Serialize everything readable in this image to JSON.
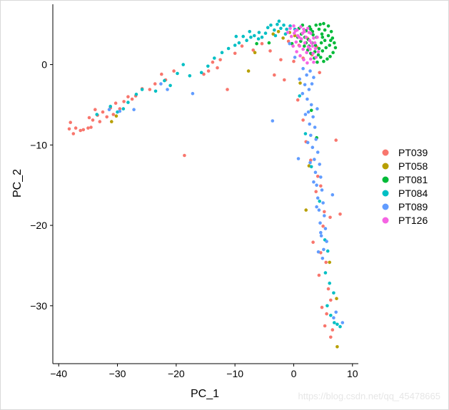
{
  "chart_data": {
    "type": "scatter",
    "title": "",
    "xlabel": "PC_1",
    "ylabel": "PC_2",
    "xlim": [
      -41,
      11
    ],
    "ylim": [
      -37.2,
      7.5
    ],
    "x_ticks": [
      -40,
      -30,
      -20,
      -10,
      0,
      10
    ],
    "x_tick_labels": [
      "−40",
      "−30",
      "−20",
      "−10",
      "0",
      "10"
    ],
    "y_ticks": [
      0,
      -10,
      -20,
      -30
    ],
    "y_tick_labels": [
      "0",
      "−10",
      "−20",
      "−30"
    ],
    "grid": false,
    "legend_position": "right",
    "series": [
      {
        "name": "PT039",
        "color": "#F8766D",
        "points": [
          [
            -38.0,
            -7.2
          ],
          [
            -38.2,
            -8.0
          ],
          [
            -37.5,
            -8.6
          ],
          [
            -37.1,
            -7.9
          ],
          [
            -36.3,
            -8.2
          ],
          [
            -35.8,
            -8.1
          ],
          [
            -35.0,
            -7.9
          ],
          [
            -34.8,
            -6.6
          ],
          [
            -34.5,
            -7.8
          ],
          [
            -34.2,
            -6.9
          ],
          [
            -33.8,
            -5.6
          ],
          [
            -33.4,
            -6.3
          ],
          [
            -33.0,
            -7.1
          ],
          [
            -32.5,
            -5.9
          ],
          [
            -31.8,
            -6.5
          ],
          [
            -31.2,
            -5.4
          ],
          [
            -30.7,
            -6.2
          ],
          [
            -30.3,
            -4.8
          ],
          [
            -29.6,
            -5.5
          ],
          [
            -28.9,
            -4.6
          ],
          [
            -28.2,
            -4.0
          ],
          [
            -27.5,
            -4.3
          ],
          [
            -26.9,
            -3.9
          ],
          [
            -25.8,
            -3.0
          ],
          [
            -24.5,
            -3.1
          ],
          [
            -23.6,
            -2.4
          ],
          [
            -22.5,
            -1.2
          ],
          [
            -21.8,
            -1.9
          ],
          [
            -20.4,
            -0.8
          ],
          [
            -18.6,
            -11.3
          ],
          [
            -15.3,
            -1.2
          ],
          [
            -14.5,
            -0.8
          ],
          [
            -13.8,
            0.3
          ],
          [
            -13.0,
            -0.4
          ],
          [
            -12.5,
            0.6
          ],
          [
            -11.3,
            -3.1
          ],
          [
            -10.0,
            1.4
          ],
          [
            -8.8,
            2.3
          ],
          [
            -6.9,
            1.8
          ],
          [
            -5.4,
            2.6
          ],
          [
            -4.0,
            1.7
          ],
          [
            -3.3,
            -1.3
          ],
          [
            -2.2,
            0.6
          ],
          [
            -1.6,
            -1.9
          ],
          [
            -0.9,
            2.9
          ],
          [
            0.0,
            0.4
          ],
          [
            0.9,
            2.4
          ],
          [
            1.6,
            0.8
          ],
          [
            2.3,
            3.3
          ],
          [
            3.1,
            1.2
          ],
          [
            3.9,
            2.2
          ],
          [
            4.4,
            -1.0
          ],
          [
            0.7,
            -4.4
          ],
          [
            1.6,
            -6.9
          ],
          [
            2.1,
            -9.6
          ],
          [
            2.9,
            -11.9
          ],
          [
            4.1,
            -13.9
          ],
          [
            4.6,
            -15.1
          ],
          [
            5.2,
            -18.3
          ],
          [
            6.2,
            -19.0
          ],
          [
            7.9,
            -18.6
          ],
          [
            7.2,
            -9.4
          ],
          [
            5.0,
            -20.1
          ],
          [
            4.6,
            -23.4
          ],
          [
            5.5,
            -24.6
          ],
          [
            4.3,
            -26.2
          ],
          [
            5.9,
            -27.9
          ],
          [
            6.3,
            -29.3
          ],
          [
            5.6,
            -31.0
          ],
          [
            5.3,
            -32.5
          ],
          [
            6.6,
            -33.0
          ],
          [
            6.3,
            -33.9
          ],
          [
            3.8,
            -15.8
          ],
          [
            3.3,
            -22.1
          ],
          [
            4.8,
            -30.2
          ]
        ]
      },
      {
        "name": "PT058",
        "color": "#B79F00",
        "points": [
          [
            -31.0,
            -7.1
          ],
          [
            -30.2,
            -6.4
          ],
          [
            -7.7,
            -0.8
          ],
          [
            -3.5,
            3.8
          ],
          [
            -2.6,
            4.1
          ],
          [
            -1.8,
            3.3
          ],
          [
            -0.7,
            4.0
          ],
          [
            0.2,
            3.6
          ],
          [
            -6.6,
            1.5
          ],
          [
            2.6,
            -12.6
          ],
          [
            2.1,
            -18.1
          ],
          [
            6.1,
            -24.6
          ],
          [
            7.3,
            -29.1
          ],
          [
            7.4,
            -35.1
          ],
          [
            1.1,
            -2.3
          ]
        ]
      },
      {
        "name": "PT081",
        "color": "#00BA38",
        "points": [
          [
            0.9,
            4.5
          ],
          [
            1.5,
            4.9
          ],
          [
            2.1,
            4.2
          ],
          [
            2.7,
            4.7
          ],
          [
            3.2,
            4.1
          ],
          [
            3.8,
            4.9
          ],
          [
            4.3,
            4.4
          ],
          [
            4.8,
            3.8
          ],
          [
            5.3,
            4.3
          ],
          [
            5.9,
            3.6
          ],
          [
            6.3,
            3.0
          ],
          [
            6.9,
            2.7
          ],
          [
            7.1,
            2.1
          ],
          [
            6.7,
            1.5
          ],
          [
            6.2,
            1.0
          ],
          [
            5.7,
            0.7
          ],
          [
            5.1,
            0.4
          ],
          [
            4.6,
            0.9
          ],
          [
            4.0,
            0.3
          ],
          [
            3.5,
            0.8
          ],
          [
            2.9,
            1.4
          ],
          [
            2.4,
            1.8
          ],
          [
            1.8,
            2.3
          ],
          [
            1.2,
            2.9
          ],
          [
            0.7,
            3.4
          ],
          [
            1.3,
            3.8
          ],
          [
            1.9,
            3.4
          ],
          [
            2.5,
            3.1
          ],
          [
            3.1,
            2.7
          ],
          [
            3.7,
            2.4
          ],
          [
            4.3,
            2.0
          ],
          [
            4.9,
            1.7
          ],
          [
            5.5,
            2.1
          ],
          [
            6.1,
            2.4
          ],
          [
            6.6,
            3.3
          ],
          [
            5.9,
            4.8
          ],
          [
            5.1,
            5.1
          ],
          [
            4.5,
            5.0
          ],
          [
            3.9,
            3.4
          ],
          [
            3.3,
            3.7
          ],
          [
            2.6,
            2.3
          ],
          [
            2.1,
            2.7
          ],
          [
            4.7,
            2.7
          ],
          [
            5.3,
            3.0
          ],
          [
            6.4,
            4.1
          ],
          [
            3.6,
            1.6
          ],
          [
            4.2,
            1.2
          ],
          [
            4.9,
            3.4
          ],
          [
            2.9,
            4.4
          ],
          [
            -0.3,
            2.6
          ],
          [
            -4.2,
            2.7
          ],
          [
            -6.3,
            2.6
          ],
          [
            3.0,
            -5.7
          ],
          [
            3.9,
            -9.1
          ]
        ]
      },
      {
        "name": "PT084",
        "color": "#00BFC4",
        "points": [
          [
            -4.4,
            4.6
          ],
          [
            -3.9,
            4.9
          ],
          [
            -3.3,
            4.3
          ],
          [
            -2.8,
            5.0
          ],
          [
            -2.2,
            4.5
          ],
          [
            -1.7,
            4.9
          ],
          [
            -1.2,
            4.4
          ],
          [
            -0.6,
            4.8
          ],
          [
            -4.8,
            3.9
          ],
          [
            -5.4,
            3.4
          ],
          [
            -6.0,
            3.2
          ],
          [
            -6.7,
            3.6
          ],
          [
            -7.3,
            3.4
          ],
          [
            -8.0,
            3.0
          ],
          [
            -8.6,
            3.5
          ],
          [
            -9.3,
            2.7
          ],
          [
            -10.0,
            2.4
          ],
          [
            -11.1,
            2.0
          ],
          [
            -12.2,
            1.5
          ],
          [
            -13.5,
            0.8
          ],
          [
            -14.6,
            -0.2
          ],
          [
            -15.7,
            -1.0
          ],
          [
            -18.8,
            0.0
          ],
          [
            -19.8,
            -1.1
          ],
          [
            -22.0,
            -2.0
          ],
          [
            -23.5,
            -3.3
          ],
          [
            -25.8,
            -3.1
          ],
          [
            -26.8,
            -3.7
          ],
          [
            -28.2,
            -4.7
          ],
          [
            -29.0,
            -5.5
          ],
          [
            -30.0,
            -5.9
          ],
          [
            -31.2,
            -5.2
          ],
          [
            -33.5,
            -6.2
          ],
          [
            -21.0,
            -2.6
          ],
          [
            -17.7,
            -1.4
          ],
          [
            -2.5,
            5.4
          ],
          [
            -3.1,
            3.6
          ],
          [
            -1.4,
            3.8
          ],
          [
            0.2,
            4.4
          ],
          [
            -5.9,
            4.0
          ],
          [
            -7.5,
            4.1
          ],
          [
            -9.8,
            3.5
          ],
          [
            1.0,
            -3.9
          ],
          [
            2.0,
            -8.6
          ],
          [
            3.0,
            -12.7
          ],
          [
            4.4,
            -17.0
          ],
          [
            5.3,
            -21.8
          ],
          [
            5.8,
            -23.2
          ],
          [
            5.4,
            -25.9
          ],
          [
            6.1,
            -27.2
          ],
          [
            6.8,
            -28.4
          ],
          [
            5.7,
            -30.0
          ],
          [
            6.3,
            -31.2
          ],
          [
            6.9,
            -32.1
          ],
          [
            7.4,
            -32.3
          ],
          [
            7.9,
            -32.6
          ]
        ]
      },
      {
        "name": "PT089",
        "color": "#619CFF",
        "points": [
          [
            1.6,
            -0.5
          ],
          [
            2.2,
            -1.3
          ],
          [
            2.8,
            -0.8
          ],
          [
            3.4,
            -1.6
          ],
          [
            1.9,
            -2.5
          ],
          [
            2.6,
            -3.1
          ],
          [
            3.1,
            -2.4
          ],
          [
            2.3,
            -4.3
          ],
          [
            3.0,
            -5.0
          ],
          [
            2.5,
            -5.9
          ],
          [
            3.3,
            -6.5
          ],
          [
            2.7,
            -7.4
          ],
          [
            3.6,
            -7.8
          ],
          [
            2.9,
            -8.8
          ],
          [
            3.8,
            -9.3
          ],
          [
            3.2,
            -10.3
          ],
          [
            4.1,
            -10.9
          ],
          [
            3.5,
            -11.8
          ],
          [
            4.4,
            -12.4
          ],
          [
            3.7,
            -13.4
          ],
          [
            4.6,
            -14.0
          ],
          [
            3.9,
            -15.0
          ],
          [
            4.8,
            -15.6
          ],
          [
            4.1,
            -16.6
          ],
          [
            5.0,
            -17.2
          ],
          [
            4.3,
            -18.1
          ],
          [
            5.2,
            -18.8
          ],
          [
            4.5,
            -19.7
          ],
          [
            5.4,
            -20.4
          ],
          [
            4.7,
            -21.3
          ],
          [
            5.6,
            -22.0
          ],
          [
            4.2,
            -23.3
          ],
          [
            4.9,
            -24.1
          ],
          [
            1.0,
            -1.8
          ],
          [
            1.5,
            -3.6
          ],
          [
            2.0,
            -6.2
          ],
          [
            2.4,
            -9.7
          ],
          [
            2.8,
            -12.2
          ],
          [
            3.4,
            -14.6
          ],
          [
            3.9,
            -17.7
          ],
          [
            4.6,
            -20.9
          ],
          [
            5.1,
            -23.0
          ],
          [
            6.8,
            -31.5
          ],
          [
            7.2,
            -30.8
          ],
          [
            8.3,
            -32.1
          ],
          [
            -21.5,
            -3.1
          ],
          [
            -22.6,
            -2.4
          ],
          [
            -27.2,
            -5.6
          ],
          [
            -29.6,
            -5.8
          ],
          [
            -31.4,
            -5.6
          ],
          [
            -3.6,
            -7.0
          ],
          [
            -17.2,
            -3.6
          ],
          [
            0.2,
            0.9
          ],
          [
            -0.7,
            2.6
          ],
          [
            0.8,
            -11.7
          ],
          [
            6.6,
            -16.2
          ],
          [
            4.0,
            -5.5
          ]
        ]
      },
      {
        "name": "PT126",
        "color": "#F564E3",
        "points": [
          [
            -0.6,
            4.5
          ],
          [
            0.0,
            4.8
          ],
          [
            0.6,
            4.3
          ],
          [
            1.2,
            4.7
          ],
          [
            1.8,
            4.1
          ],
          [
            2.4,
            4.5
          ],
          [
            2.9,
            3.9
          ],
          [
            3.4,
            3.3
          ],
          [
            3.0,
            2.7
          ],
          [
            2.5,
            2.2
          ],
          [
            1.9,
            2.7
          ],
          [
            1.3,
            3.2
          ],
          [
            0.7,
            3.6
          ],
          [
            0.1,
            3.9
          ],
          [
            -0.4,
            3.5
          ],
          [
            0.4,
            2.8
          ],
          [
            1.0,
            2.3
          ],
          [
            1.6,
            1.9
          ],
          [
            2.2,
            1.5
          ],
          [
            2.8,
            1.9
          ],
          [
            3.3,
            1.4
          ],
          [
            3.8,
            0.9
          ],
          [
            3.4,
            0.3
          ],
          [
            2.9,
            0.7
          ],
          [
            2.3,
            0.2
          ],
          [
            1.7,
            0.6
          ],
          [
            1.1,
            1.1
          ],
          [
            0.5,
            1.6
          ],
          [
            -0.1,
            2.3
          ],
          [
            0.9,
            3.4
          ],
          [
            1.5,
            3.9
          ],
          [
            2.1,
            3.4
          ],
          [
            2.7,
            3.0
          ],
          [
            3.2,
            2.3
          ],
          [
            3.7,
            2.0
          ],
          [
            4.2,
            1.6
          ],
          [
            -1.0,
            4.0
          ],
          [
            0.3,
            4.2
          ],
          [
            1.7,
            4.4
          ],
          [
            2.6,
            4.0
          ],
          [
            3.6,
            2.7
          ],
          [
            4.0,
            3.4
          ]
        ]
      }
    ]
  },
  "watermark": "https://blog.csdn.net/qq_45478665"
}
